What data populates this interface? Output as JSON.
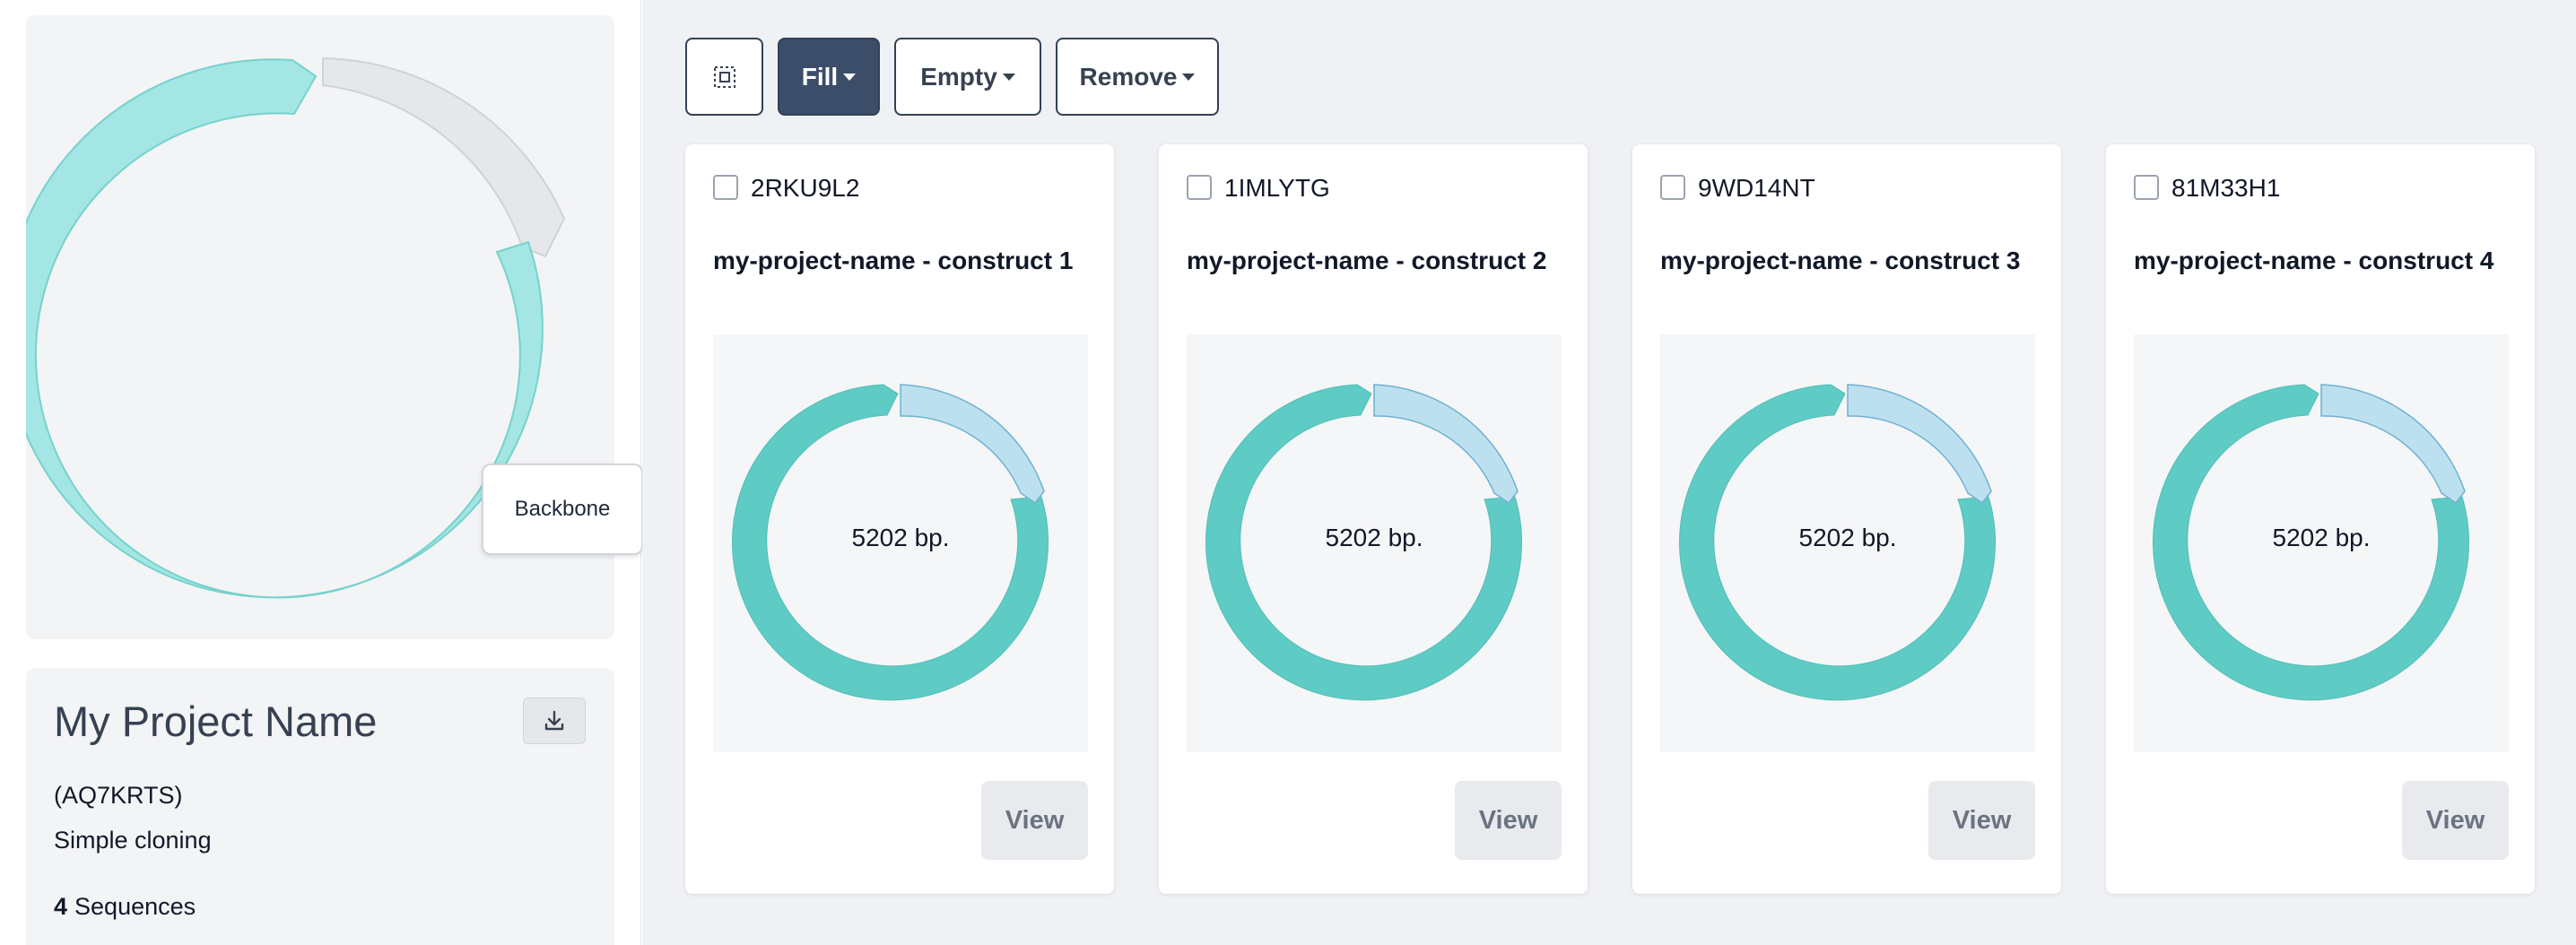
{
  "sidebar": {
    "tooltip": "Backbone",
    "project_title": "My Project Name",
    "project_id": "(AQ7KRTS)",
    "project_type": "Simple cloning",
    "sequence_count": "4",
    "sequence_label": "Sequences",
    "download_icon": "download-icon"
  },
  "toolbar": {
    "select_icon": "select-all-icon",
    "fill_label": "Fill",
    "empty_label": "Empty",
    "remove_label": "Remove"
  },
  "cards": [
    {
      "id": "2RKU9L2",
      "name": "my-project-name - construct 1",
      "bp": "5202 bp.",
      "view_label": "View"
    },
    {
      "id": "1IMLYTG",
      "name": "my-project-name - construct 2",
      "bp": "5202 bp.",
      "view_label": "View"
    },
    {
      "id": "9WD14NT",
      "name": "my-project-name - construct 3",
      "bp": "5202 bp.",
      "view_label": "View"
    },
    {
      "id": "81M33H1",
      "name": "my-project-name - construct 4",
      "bp": "5202 bp.",
      "view_label": "View"
    }
  ],
  "colors": {
    "backbone": "#5eccc5",
    "insert": "#bde0ef",
    "sidebar_backbone": "#a3e6e3",
    "sidebar_insert": "#e5e7eb",
    "primary_button": "#3b4d69"
  }
}
